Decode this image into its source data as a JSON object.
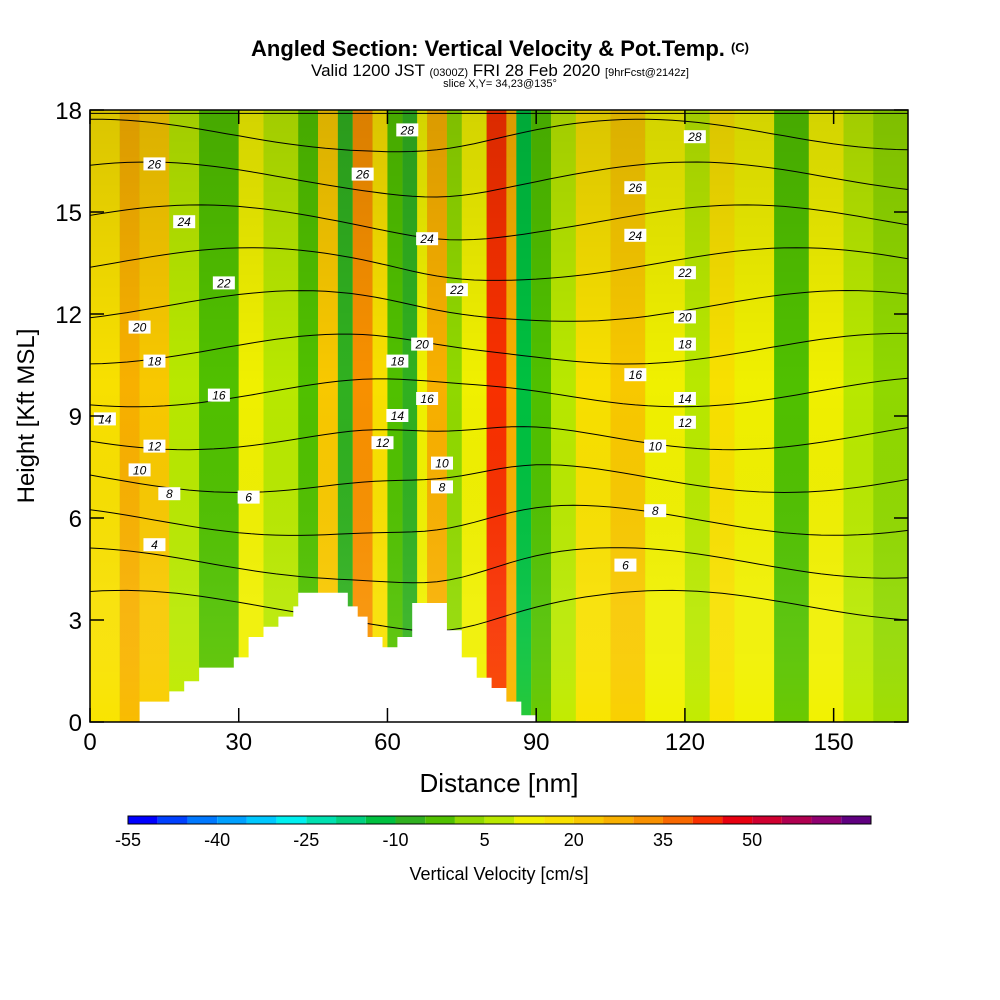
{
  "title": {
    "main": "Angled Section: Vertical Velocity & Pot.Temp.",
    "copyright": "(C)",
    "valid_prefix": "Valid 1200 JST",
    "valid_utc": "(0300Z)",
    "valid_date": "FRI 28 Feb 2020",
    "forecast": "[9hrFcst@2142z]",
    "slice": "slice X,Y= 34,23@135°"
  },
  "chart_data": {
    "type": "heatmap",
    "xlabel": "Distance [nm]",
    "ylabel": "Height [Kft MSL]",
    "xlim": [
      0,
      165
    ],
    "ylim": [
      0,
      18
    ],
    "xticks": [
      0,
      30,
      60,
      90,
      120,
      150
    ],
    "yticks": [
      0,
      3,
      6,
      9,
      12,
      15,
      18
    ],
    "terrain_kft": [
      [
        0,
        0
      ],
      [
        10,
        0
      ],
      [
        10,
        0.6
      ],
      [
        16,
        0.6
      ],
      [
        16,
        0.9
      ],
      [
        19,
        0.9
      ],
      [
        19,
        1.2
      ],
      [
        22,
        1.2
      ],
      [
        22,
        1.6
      ],
      [
        29,
        1.6
      ],
      [
        29,
        1.9
      ],
      [
        32,
        1.9
      ],
      [
        32,
        2.5
      ],
      [
        35,
        2.5
      ],
      [
        35,
        2.8
      ],
      [
        38,
        2.8
      ],
      [
        38,
        3.1
      ],
      [
        41,
        3.1
      ],
      [
        41,
        3.4
      ],
      [
        42,
        3.4
      ],
      [
        42,
        3.8
      ],
      [
        52,
        3.8
      ],
      [
        52,
        3.4
      ],
      [
        54,
        3.4
      ],
      [
        54,
        3.1
      ],
      [
        56,
        3.1
      ],
      [
        56,
        2.5
      ],
      [
        59,
        2.5
      ],
      [
        59,
        2.2
      ],
      [
        62,
        2.2
      ],
      [
        62,
        2.5
      ],
      [
        65,
        2.5
      ],
      [
        65,
        3.5
      ],
      [
        72,
        3.5
      ],
      [
        72,
        2.7
      ],
      [
        75,
        2.7
      ],
      [
        75,
        1.9
      ],
      [
        78,
        1.9
      ],
      [
        78,
        1.3
      ],
      [
        81,
        1.3
      ],
      [
        81,
        1.0
      ],
      [
        84,
        1.0
      ],
      [
        84,
        0.6
      ],
      [
        87,
        0.6
      ],
      [
        87,
        0.2
      ],
      [
        90,
        0.2
      ],
      [
        90,
        0
      ]
    ],
    "theta_contours_c": [
      4,
      6,
      8,
      10,
      12,
      14,
      16,
      18,
      20,
      22,
      24,
      26,
      28
    ],
    "theta_label_points": [
      {
        "v": "28",
        "x": 64,
        "y": 17.4
      },
      {
        "v": "28",
        "x": 122,
        "y": 17.2
      },
      {
        "v": "26",
        "x": 13,
        "y": 16.4
      },
      {
        "v": "26",
        "x": 55,
        "y": 16.1
      },
      {
        "v": "26",
        "x": 110,
        "y": 15.7
      },
      {
        "v": "24",
        "x": 19,
        "y": 14.7
      },
      {
        "v": "24",
        "x": 68,
        "y": 14.2
      },
      {
        "v": "24",
        "x": 110,
        "y": 14.3
      },
      {
        "v": "22",
        "x": 27,
        "y": 12.9
      },
      {
        "v": "22",
        "x": 74,
        "y": 12.7
      },
      {
        "v": "22",
        "x": 120,
        "y": 13.2
      },
      {
        "v": "20",
        "x": 10,
        "y": 11.6
      },
      {
        "v": "20",
        "x": 67,
        "y": 11.1
      },
      {
        "v": "20",
        "x": 120,
        "y": 11.9
      },
      {
        "v": "18",
        "x": 13,
        "y": 10.6
      },
      {
        "v": "18",
        "x": 62,
        "y": 10.6
      },
      {
        "v": "18",
        "x": 120,
        "y": 11.1
      },
      {
        "v": "16",
        "x": 26,
        "y": 9.6
      },
      {
        "v": "16",
        "x": 68,
        "y": 9.5
      },
      {
        "v": "16",
        "x": 110,
        "y": 10.2
      },
      {
        "v": "14",
        "x": 3,
        "y": 8.9
      },
      {
        "v": "14",
        "x": 62,
        "y": 9.0
      },
      {
        "v": "14",
        "x": 120,
        "y": 9.5
      },
      {
        "v": "12",
        "x": 13,
        "y": 8.1
      },
      {
        "v": "12",
        "x": 59,
        "y": 8.2
      },
      {
        "v": "12",
        "x": 120,
        "y": 8.8
      },
      {
        "v": "10",
        "x": 10,
        "y": 7.4
      },
      {
        "v": "10",
        "x": 71,
        "y": 7.6
      },
      {
        "v": "10",
        "x": 114,
        "y": 8.1
      },
      {
        "v": "8",
        "x": 16,
        "y": 6.7
      },
      {
        "v": "8",
        "x": 71,
        "y": 6.9
      },
      {
        "v": "8",
        "x": 114,
        "y": 6.2
      },
      {
        "v": "6",
        "x": 32,
        "y": 6.6
      },
      {
        "v": "6",
        "x": 108,
        "y": 4.6
      },
      {
        "v": "4",
        "x": 13,
        "y": 5.2
      }
    ],
    "w_columns_cms": [
      {
        "x": [
          0,
          6
        ],
        "w": 10
      },
      {
        "x": [
          6,
          10
        ],
        "w": 20
      },
      {
        "x": [
          10,
          16
        ],
        "w": 15
      },
      {
        "x": [
          16,
          22
        ],
        "w": 0
      },
      {
        "x": [
          22,
          30
        ],
        "w": -10
      },
      {
        "x": [
          30,
          35
        ],
        "w": 5
      },
      {
        "x": [
          35,
          42
        ],
        "w": 0
      },
      {
        "x": [
          42,
          46
        ],
        "w": -10
      },
      {
        "x": [
          46,
          50
        ],
        "w": 15
      },
      {
        "x": [
          50,
          53
        ],
        "w": -15
      },
      {
        "x": [
          53,
          57
        ],
        "w": 25
      },
      {
        "x": [
          57,
          60
        ],
        "w": 10
      },
      {
        "x": [
          60,
          63
        ],
        "w": -10
      },
      {
        "x": [
          63,
          66
        ],
        "w": -15
      },
      {
        "x": [
          66,
          68
        ],
        "w": 5
      },
      {
        "x": [
          68,
          72
        ],
        "w": 20
      },
      {
        "x": [
          72,
          75
        ],
        "w": -5
      },
      {
        "x": [
          75,
          80
        ],
        "w": 5
      },
      {
        "x": [
          80,
          84
        ],
        "w": 35
      },
      {
        "x": [
          84,
          86
        ],
        "w": 20
      },
      {
        "x": [
          86,
          89
        ],
        "w": -20
      },
      {
        "x": [
          89,
          93
        ],
        "w": -10
      },
      {
        "x": [
          93,
          98
        ],
        "w": 0
      },
      {
        "x": [
          98,
          105
        ],
        "w": 10
      },
      {
        "x": [
          105,
          112
        ],
        "w": 15
      },
      {
        "x": [
          112,
          120
        ],
        "w": 5
      },
      {
        "x": [
          120,
          125
        ],
        "w": 0
      },
      {
        "x": [
          125,
          130
        ],
        "w": 10
      },
      {
        "x": [
          130,
          138
        ],
        "w": 5
      },
      {
        "x": [
          138,
          145
        ],
        "w": -10
      },
      {
        "x": [
          145,
          152
        ],
        "w": 5
      },
      {
        "x": [
          152,
          158
        ],
        "w": 0
      },
      {
        "x": [
          158,
          165
        ],
        "w": -5
      }
    ],
    "legend": {
      "title": "Vertical Velocity [cm/s]",
      "tick_labels": [
        "-55",
        "-40",
        "-25",
        "-10",
        "5",
        "20",
        "35",
        "50"
      ],
      "levels": [
        -55,
        -50,
        -45,
        -40,
        -35,
        -30,
        -25,
        -20,
        -15,
        -10,
        -5,
        0,
        5,
        10,
        15,
        20,
        25,
        30,
        35,
        40,
        45,
        50,
        55,
        60
      ],
      "colors": [
        "#0000ff",
        "#0040ff",
        "#0078ff",
        "#00a0ff",
        "#00c8ff",
        "#00f0f0",
        "#00e0b0",
        "#00d080",
        "#00c040",
        "#30b020",
        "#50c000",
        "#90d800",
        "#b8e800",
        "#f0f000",
        "#f8e000",
        "#f8c800",
        "#f8b000",
        "#f89000",
        "#f86800",
        "#f83000",
        "#e80010",
        "#d00030",
        "#b00050",
        "#900070",
        "#600080"
      ]
    }
  }
}
